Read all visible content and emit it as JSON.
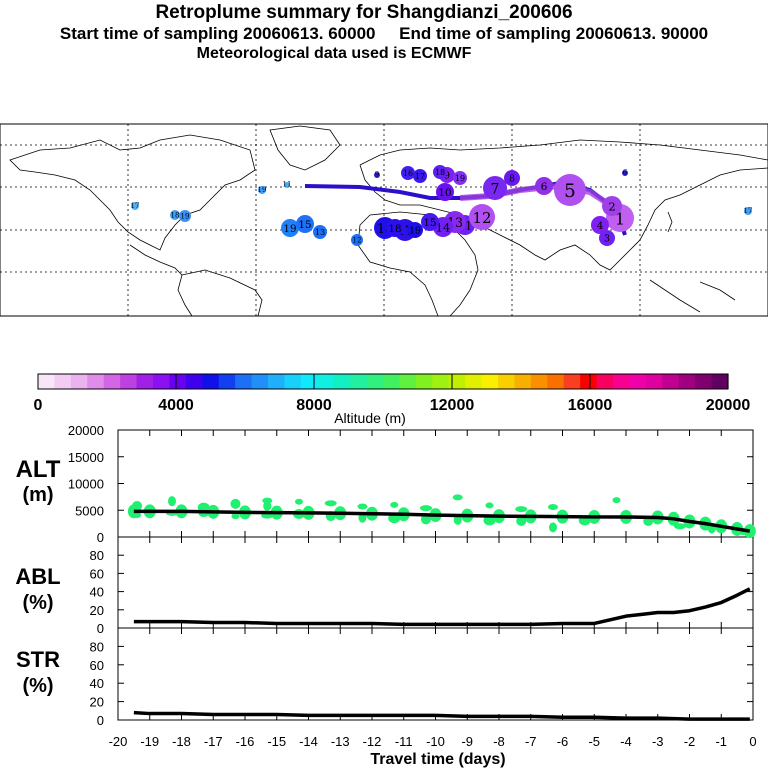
{
  "header": {
    "title": "Retroplume summary for Shangdianzi_200606",
    "start_label": "Start time of sampling 20060613. 60000",
    "end_label": "End time of sampling 20060613. 90000",
    "met_label": "Meteorological data used is ECMWF"
  },
  "colorbar": {
    "title": "Altitude (m)",
    "ticks": [
      "0",
      "4000",
      "8000",
      "12000",
      "16000",
      "20000"
    ],
    "colors": [
      "#f7e6f7",
      "#f2ccf2",
      "#eab3f0",
      "#e08ceb",
      "#d466e6",
      "#bf40e0",
      "#a020e8",
      "#8c10f0",
      "#6a00f0",
      "#4000f0",
      "#1010e8",
      "#1040f0",
      "#1c70f5",
      "#2090f8",
      "#20b0fa",
      "#18d0fc",
      "#10e8fc",
      "#10f0e0",
      "#10f0c0",
      "#20f0a0",
      "#30f080",
      "#40f060",
      "#60f040",
      "#80f020",
      "#a0f010",
      "#c0f000",
      "#e0f000",
      "#f8f000",
      "#f8d000",
      "#f8b000",
      "#f89000",
      "#f87000",
      "#f84020",
      "#f80000",
      "#f80060",
      "#f80090",
      "#f000a8",
      "#e000a0",
      "#c00090",
      "#a00080",
      "#800070",
      "#600060"
    ]
  },
  "map": {
    "labels": [
      "1",
      "2",
      "3",
      "4",
      "5",
      "6",
      "7",
      "8",
      "9",
      "10",
      "11",
      "12",
      "13",
      "14",
      "15",
      "16",
      "17",
      "18",
      "19"
    ]
  },
  "panels": {
    "alt_label": [
      "ALT",
      "(m)"
    ],
    "abl_label": [
      "ABL",
      "(%)"
    ],
    "str_label": [
      "STR",
      "(%)"
    ],
    "xlabel": "Travel time (days)"
  },
  "chart_data": [
    {
      "type": "line",
      "title": "ALT",
      "ylabel": "ALT (m)",
      "xlabel": "Travel time (days)",
      "xlim": [
        -20,
        0
      ],
      "ylim": [
        0,
        20000
      ],
      "yticks": [
        "20000",
        "15000",
        "10000",
        "5000",
        "0"
      ],
      "xticks": [
        "-20",
        "-19",
        "-18",
        "-17",
        "-16",
        "-15",
        "-14",
        "-13",
        "-12",
        "-11",
        "-10",
        "-9",
        "-8",
        "-7",
        "-6",
        "-5",
        "-4",
        "-3",
        "-2",
        "-1",
        "0"
      ],
      "x": [
        -19.5,
        -19,
        -18,
        -17,
        -16,
        -15,
        -14,
        -13,
        -12,
        -11,
        -10,
        -9,
        -8,
        -7,
        -6,
        -5,
        -4,
        -3,
        -2.5,
        -2,
        -1.5,
        -1,
        -0.5,
        -0.1
      ],
      "y": [
        4800,
        4800,
        4800,
        4700,
        4600,
        4550,
        4500,
        4450,
        4350,
        4250,
        4100,
        4000,
        3900,
        3850,
        3800,
        3750,
        3750,
        3650,
        3400,
        2900,
        2500,
        2000,
        1500,
        1100
      ],
      "scatter": [
        {
          "x": -19.4,
          "y": 4100
        },
        {
          "x": -19.4,
          "y": 5800
        },
        {
          "x": -18.3,
          "y": 4500
        },
        {
          "x": -18.3,
          "y": 6700
        },
        {
          "x": -17.3,
          "y": 4300
        },
        {
          "x": -17.3,
          "y": 5500
        },
        {
          "x": -16.3,
          "y": 3900
        },
        {
          "x": -16.3,
          "y": 6200
        },
        {
          "x": -15.3,
          "y": 4000
        },
        {
          "x": -15.3,
          "y": 5800
        },
        {
          "x": -15.3,
          "y": 6800
        },
        {
          "x": -14.3,
          "y": 4300
        },
        {
          "x": -14.3,
          "y": 6600
        },
        {
          "x": -13.3,
          "y": 3900
        },
        {
          "x": -13.3,
          "y": 6300
        },
        {
          "x": -12.3,
          "y": 3600
        },
        {
          "x": -12.3,
          "y": 5700
        },
        {
          "x": -11.3,
          "y": 3500
        },
        {
          "x": -11.3,
          "y": 6000
        },
        {
          "x": -10.3,
          "y": 3300
        },
        {
          "x": -10.3,
          "y": 5400
        },
        {
          "x": -9.3,
          "y": 3200
        },
        {
          "x": -9.3,
          "y": 7400
        },
        {
          "x": -8.3,
          "y": 3100
        },
        {
          "x": -8.3,
          "y": 5900
        },
        {
          "x": -7.3,
          "y": 3000
        },
        {
          "x": -7.3,
          "y": 5200
        },
        {
          "x": -6.3,
          "y": 1800
        },
        {
          "x": -6.3,
          "y": 5600
        },
        {
          "x": -5.3,
          "y": 3100
        },
        {
          "x": -4.3,
          "y": 6900
        },
        {
          "x": -3.3,
          "y": 3000
        },
        {
          "x": -2.3,
          "y": 2000
        },
        {
          "x": -1.3,
          "y": 1600
        },
        {
          "x": -0.3,
          "y": 900
        }
      ]
    },
    {
      "type": "line",
      "title": "ABL",
      "ylabel": "ABL (%)",
      "xlim": [
        -20,
        0
      ],
      "ylim": [
        0,
        100
      ],
      "yticks": [
        "80",
        "60",
        "40",
        "20",
        "0"
      ],
      "x": [
        -19.5,
        -19,
        -18,
        -17,
        -16,
        -15,
        -14,
        -13,
        -12,
        -11,
        -10,
        -9,
        -8,
        -7,
        -6,
        -5,
        -4.5,
        -4,
        -3.5,
        -3,
        -2.5,
        -2,
        -1.5,
        -1,
        -0.5,
        -0.1
      ],
      "y": [
        7,
        7,
        7,
        6,
        6,
        5,
        5,
        5,
        5,
        4,
        4,
        4,
        4,
        4,
        5,
        5,
        9,
        13,
        15,
        17,
        17,
        19,
        23,
        28,
        36,
        43
      ]
    },
    {
      "type": "line",
      "title": "STR",
      "ylabel": "STR (%)",
      "xlim": [
        -20,
        0
      ],
      "ylim": [
        0,
        100
      ],
      "yticks": [
        "80",
        "60",
        "40",
        "20",
        "0"
      ],
      "x": [
        -19.5,
        -19,
        -18,
        -17,
        -16,
        -15,
        -14,
        -13,
        -12,
        -11,
        -10,
        -9,
        -8,
        -7,
        -6,
        -5,
        -4,
        -3,
        -2,
        -1,
        -0.1
      ],
      "y": [
        8,
        7,
        7,
        6,
        6,
        6,
        5,
        5,
        5,
        5,
        5,
        4,
        4,
        4,
        3,
        3,
        2,
        2,
        1,
        1,
        1
      ]
    }
  ]
}
